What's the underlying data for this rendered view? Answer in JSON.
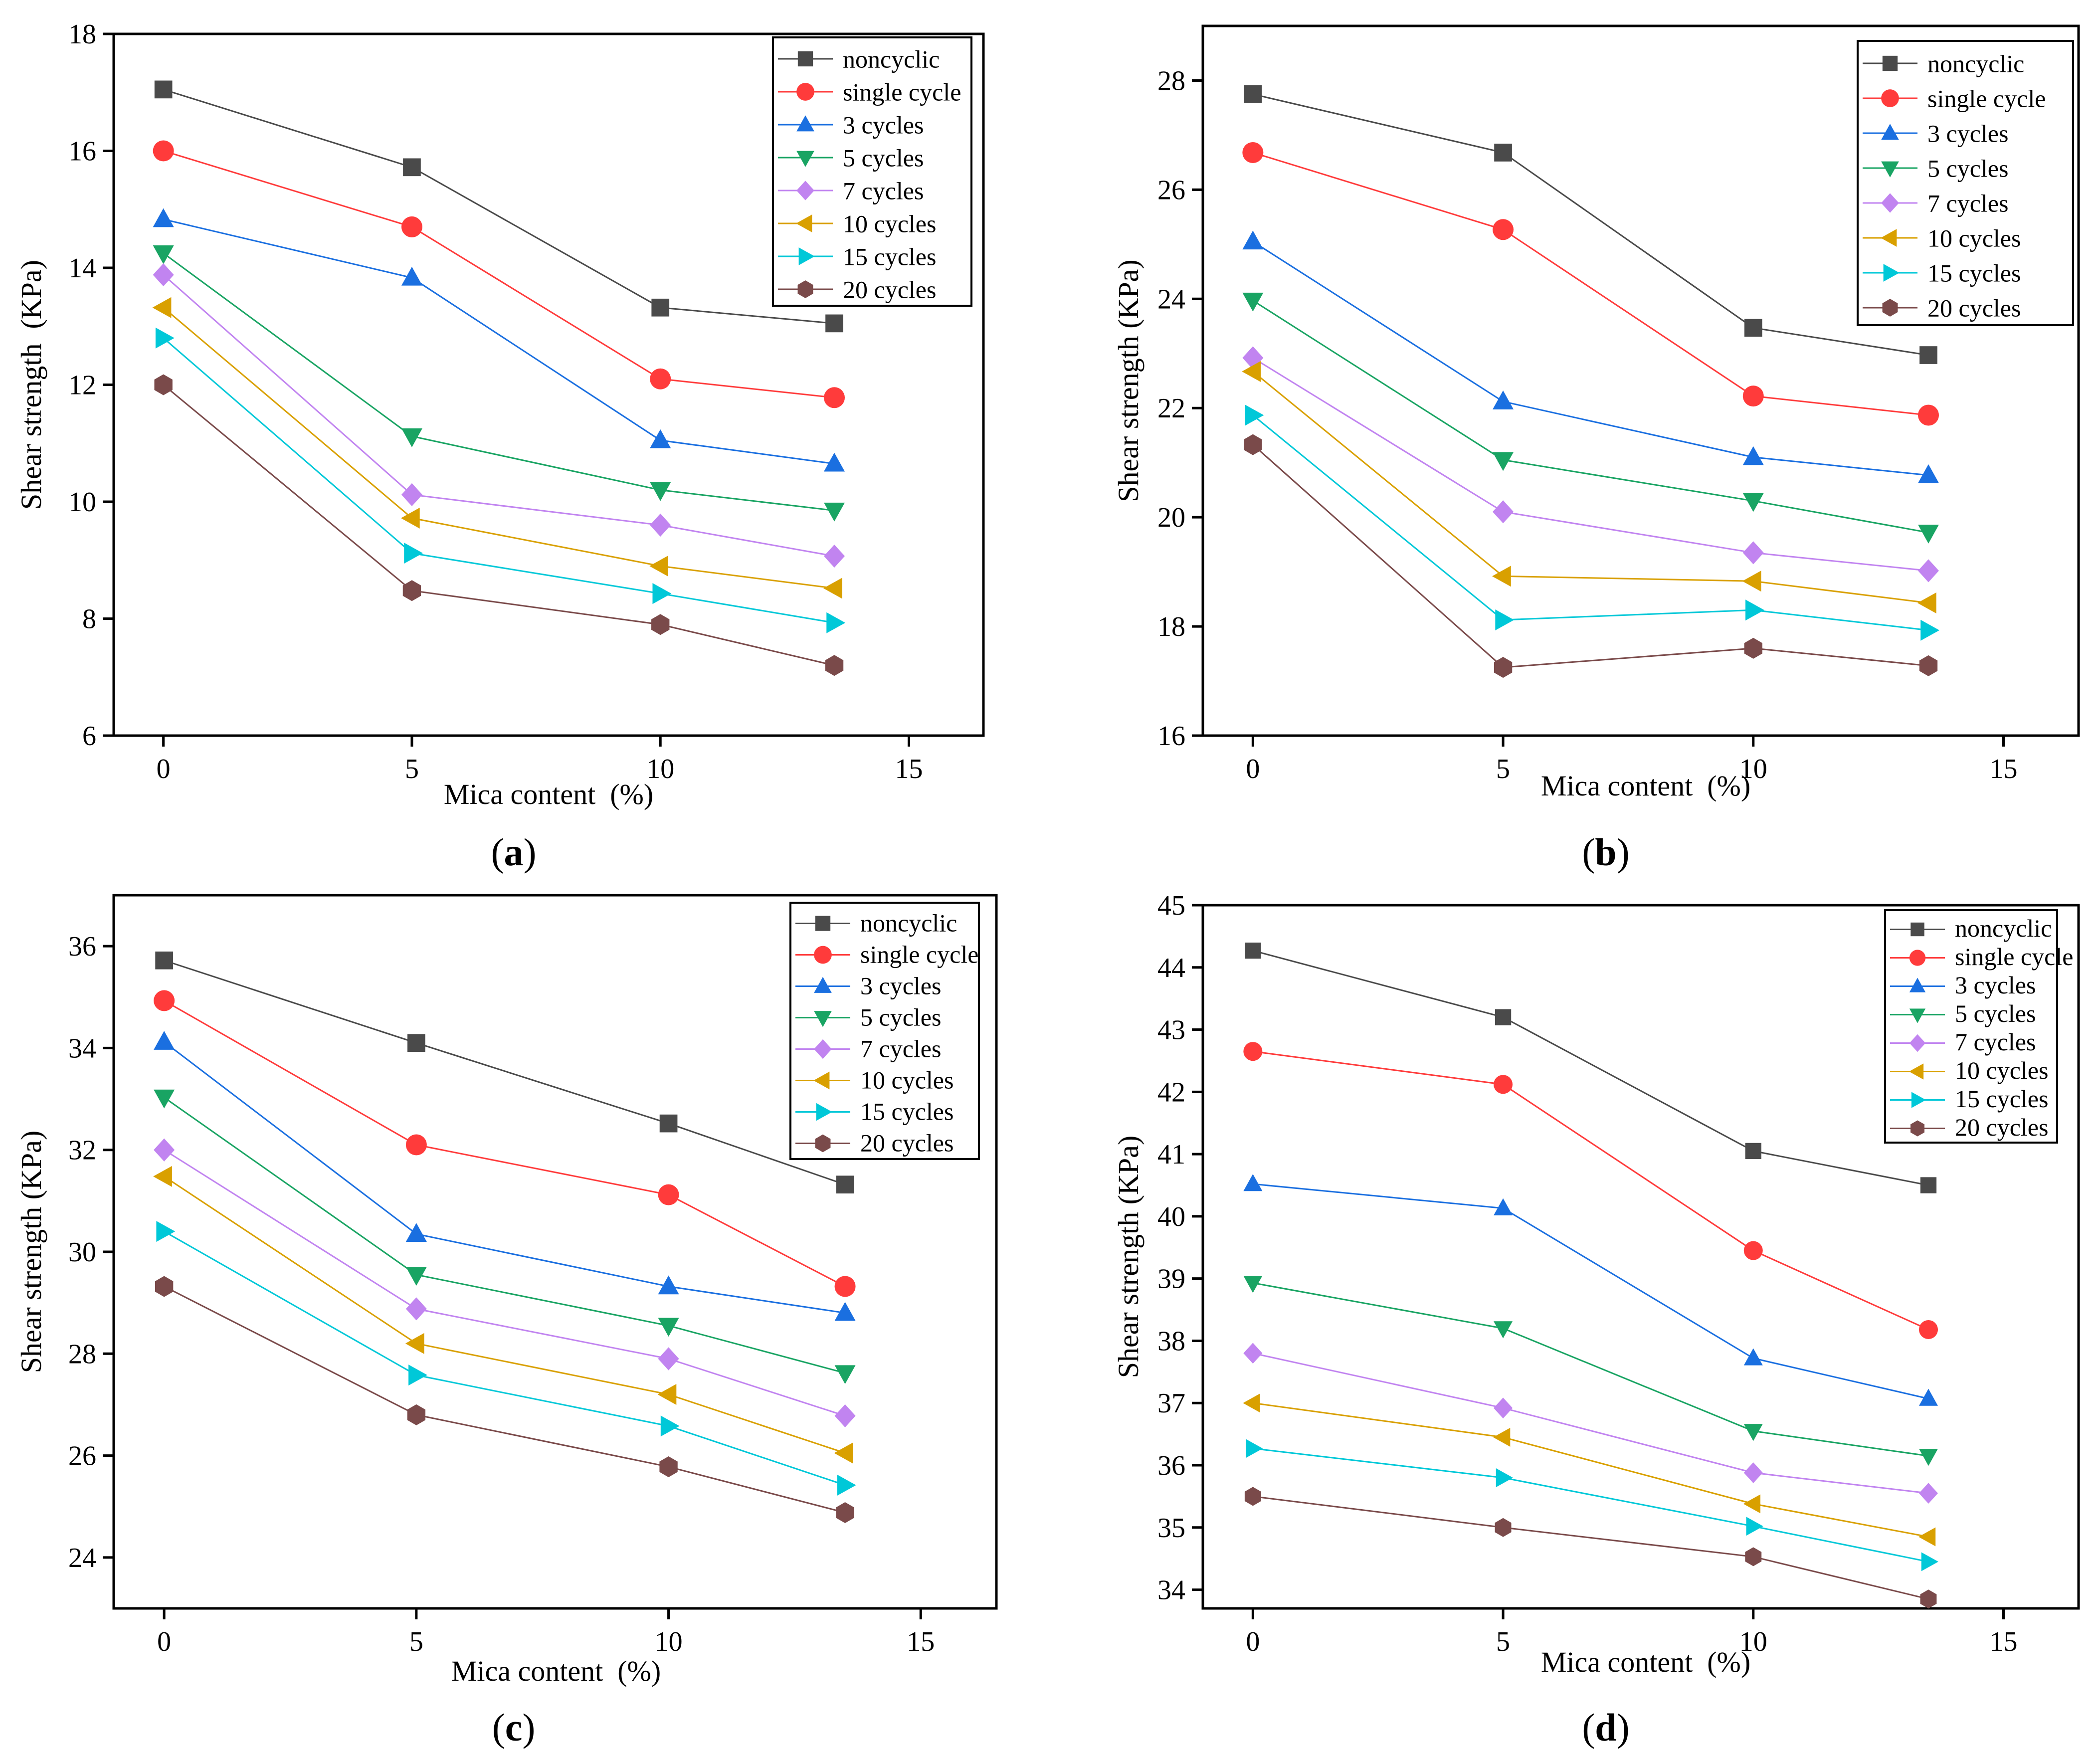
{
  "series_styles": [
    {
      "name": "noncyclic",
      "color": "#4a4a4a",
      "marker": "square"
    },
    {
      "name": "single cycle",
      "color": "#ff3b3b",
      "marker": "circle"
    },
    {
      "name": "3 cycles",
      "color": "#1a6fe0",
      "marker": "triangle-up"
    },
    {
      "name": "5 cycles",
      "color": "#19a463",
      "marker": "triangle-down"
    },
    {
      "name": "7 cycles",
      "color": "#c184f0",
      "marker": "diamond"
    },
    {
      "name": "10 cycles",
      "color": "#d9a000",
      "marker": "triangle-left"
    },
    {
      "name": "15 cycles",
      "color": "#00c8d8",
      "marker": "triangle-right"
    },
    {
      "name": "20 cycles",
      "color": "#7a4a4a",
      "marker": "hexagon"
    }
  ],
  "chart_data": [
    {
      "panel": "(a)",
      "panel_paren_open": "(",
      "panel_letter": "a",
      "panel_paren_close": ")",
      "type": "line",
      "xlabel": "Mica content  (%)",
      "ylabel": "Shear strength  (KPa)",
      "xlim": [
        -1,
        16.5
      ],
      "ylim": [
        6,
        18
      ],
      "xticks": [
        0,
        5,
        10,
        15
      ],
      "yticks": [
        6,
        8,
        10,
        12,
        14,
        16,
        18
      ],
      "x": [
        0,
        5,
        10,
        13.5
      ],
      "series": [
        {
          "name": "noncyclic",
          "values": [
            17.05,
            15.72,
            13.32,
            13.05
          ]
        },
        {
          "name": "single cycle",
          "values": [
            16.0,
            14.7,
            12.1,
            11.78
          ]
        },
        {
          "name": "3 cycles",
          "values": [
            14.83,
            13.83,
            11.05,
            10.65
          ]
        },
        {
          "name": "5 cycles",
          "values": [
            14.25,
            11.12,
            10.2,
            9.85
          ]
        },
        {
          "name": "7 cycles",
          "values": [
            13.88,
            10.12,
            9.6,
            9.07
          ]
        },
        {
          "name": "10 cycles",
          "values": [
            13.32,
            9.72,
            8.9,
            8.52
          ]
        },
        {
          "name": "15 cycles",
          "values": [
            12.8,
            9.12,
            8.43,
            7.93
          ]
        },
        {
          "name": "20 cycles",
          "values": [
            12.0,
            8.48,
            7.9,
            7.2
          ]
        }
      ]
    },
    {
      "panel": "(b)",
      "panel_paren_open": "(",
      "panel_letter": "b",
      "panel_paren_close": ")",
      "type": "line",
      "xlabel": "Mica content  (%)",
      "ylabel": "Shear strength (KPa)",
      "xlim": [
        -1,
        16.5
      ],
      "ylim": [
        16,
        29
      ],
      "xticks": [
        0,
        5,
        10,
        15
      ],
      "yticks": [
        16,
        18,
        20,
        22,
        24,
        26,
        28
      ],
      "x": [
        0,
        5,
        10,
        13.5
      ],
      "series": [
        {
          "name": "noncyclic",
          "values": [
            27.75,
            26.68,
            23.47,
            22.97
          ]
        },
        {
          "name": "single cycle",
          "values": [
            26.68,
            25.27,
            22.22,
            21.87
          ]
        },
        {
          "name": "3 cycles",
          "values": [
            25.05,
            22.12,
            21.1,
            20.77
          ]
        },
        {
          "name": "5 cycles",
          "values": [
            23.97,
            21.05,
            20.3,
            19.72
          ]
        },
        {
          "name": "7 cycles",
          "values": [
            22.92,
            20.1,
            19.35,
            19.02
          ]
        },
        {
          "name": "10 cycles",
          "values": [
            22.67,
            18.92,
            18.83,
            18.43
          ]
        },
        {
          "name": "15 cycles",
          "values": [
            21.87,
            18.12,
            18.3,
            17.93
          ]
        },
        {
          "name": "20 cycles",
          "values": [
            21.33,
            17.25,
            17.6,
            17.28
          ]
        }
      ]
    },
    {
      "panel": "(c)",
      "panel_paren_open": "(",
      "panel_letter": "c",
      "panel_paren_close": ")",
      "type": "line",
      "xlabel": "Mica content  (%)",
      "ylabel": "Shear strength (KPa)",
      "xlim": [
        -1,
        16.5
      ],
      "ylim": [
        23,
        37
      ],
      "xticks": [
        0,
        5,
        10,
        15
      ],
      "yticks": [
        24,
        26,
        28,
        30,
        32,
        34,
        36
      ],
      "x": [
        0,
        5,
        10,
        13.5
      ],
      "series": [
        {
          "name": "noncyclic",
          "values": [
            35.72,
            34.1,
            32.52,
            31.32
          ]
        },
        {
          "name": "single cycle",
          "values": [
            34.93,
            32.1,
            31.12,
            29.32
          ]
        },
        {
          "name": "3 cycles",
          "values": [
            34.12,
            30.35,
            29.32,
            28.8
          ]
        },
        {
          "name": "5 cycles",
          "values": [
            33.03,
            29.55,
            28.55,
            27.62
          ]
        },
        {
          "name": "7 cycles",
          "values": [
            32.0,
            28.88,
            27.9,
            26.78
          ]
        },
        {
          "name": "10 cycles",
          "values": [
            31.48,
            28.2,
            27.2,
            26.05
          ]
        },
        {
          "name": "15 cycles",
          "values": [
            30.4,
            27.58,
            26.58,
            25.42
          ]
        },
        {
          "name": "20 cycles",
          "values": [
            29.32,
            26.8,
            25.78,
            24.88
          ]
        }
      ]
    },
    {
      "panel": "(d)",
      "panel_paren_open": "(",
      "panel_letter": "d",
      "panel_paren_close": ")",
      "type": "line",
      "xlabel": "Mica content  (%)",
      "ylabel": "Shear strength (KPa)",
      "xlim": [
        -1,
        16.5
      ],
      "ylim": [
        33.7,
        45
      ],
      "xticks": [
        0,
        5,
        10,
        15
      ],
      "yticks": [
        34,
        35,
        36,
        37,
        38,
        39,
        40,
        41,
        42,
        43,
        44,
        45
      ],
      "x": [
        0,
        5,
        10,
        13.5
      ],
      "series": [
        {
          "name": "noncyclic",
          "values": [
            44.27,
            43.2,
            41.05,
            40.5
          ]
        },
        {
          "name": "single cycle",
          "values": [
            42.65,
            42.12,
            39.45,
            38.18
          ]
        },
        {
          "name": "3 cycles",
          "values": [
            40.52,
            40.13,
            37.72,
            37.07
          ]
        },
        {
          "name": "5 cycles",
          "values": [
            38.93,
            38.2,
            36.55,
            36.15
          ]
        },
        {
          "name": "7 cycles",
          "values": [
            37.8,
            36.92,
            35.88,
            35.55
          ]
        },
        {
          "name": "10 cycles",
          "values": [
            37.0,
            36.45,
            35.38,
            34.85
          ]
        },
        {
          "name": "15 cycles",
          "values": [
            36.27,
            35.8,
            35.02,
            34.45
          ]
        },
        {
          "name": "20 cycles",
          "values": [
            35.5,
            35.0,
            34.53,
            33.85
          ]
        }
      ]
    }
  ]
}
